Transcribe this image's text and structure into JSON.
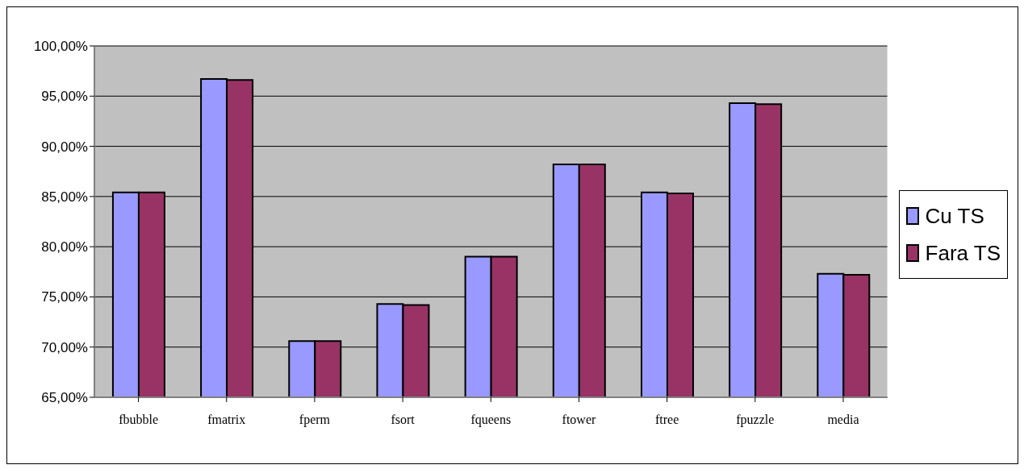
{
  "chart_data": {
    "type": "bar",
    "categories": [
      "fbubble",
      "fmatrix",
      "fperm",
      "fsort",
      "fqueens",
      "ftower",
      "ftree",
      "fpuzzle",
      "media"
    ],
    "series": [
      {
        "name": "Cu TS",
        "color": "#9999ff",
        "values": [
          85.4,
          96.7,
          70.6,
          74.3,
          79.0,
          88.2,
          85.4,
          94.3,
          77.3
        ]
      },
      {
        "name": "Fara TS",
        "color": "#993366",
        "values": [
          85.4,
          96.6,
          70.6,
          74.2,
          79.0,
          88.2,
          85.3,
          94.2,
          77.2
        ]
      }
    ],
    "ylim": [
      65,
      100
    ],
    "yticks": [
      {
        "value": 65,
        "label": "65,00%"
      },
      {
        "value": 70,
        "label": "70,00%"
      },
      {
        "value": 75,
        "label": "75,00%"
      },
      {
        "value": 80,
        "label": "80,00%"
      },
      {
        "value": 85,
        "label": "85,00%"
      },
      {
        "value": 90,
        "label": "90,00%"
      },
      {
        "value": 95,
        "label": "95,00%"
      },
      {
        "value": 100,
        "label": "100,00%"
      }
    ],
    "grid": "y",
    "legend": "right"
  }
}
